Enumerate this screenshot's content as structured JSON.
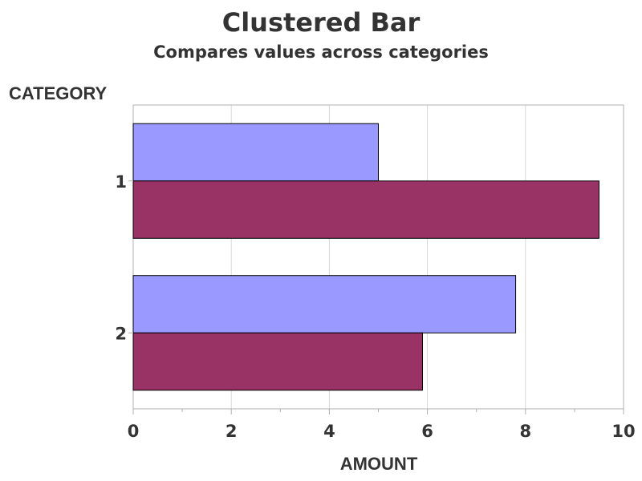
{
  "chart_data": {
    "type": "bar",
    "orientation": "horizontal",
    "title": "Clustered Bar",
    "subtitle": "Compares values across categories",
    "xlabel": "AMOUNT",
    "ylabel": "CATEGORY",
    "categories": [
      "1",
      "2"
    ],
    "series": [
      {
        "color": "#9999ff",
        "values": [
          5.0,
          7.8
        ]
      },
      {
        "color": "#993366",
        "values": [
          9.5,
          5.9
        ]
      }
    ],
    "xlim": [
      0,
      10
    ],
    "xticks": [
      "0",
      "2",
      "4",
      "6",
      "8",
      "10"
    ],
    "grid": true,
    "legend": "none",
    "colors": {
      "grid": "#d9d9d9",
      "frame": "#b0b0b0",
      "bar_outline": "#000000",
      "text": "#333333"
    }
  }
}
